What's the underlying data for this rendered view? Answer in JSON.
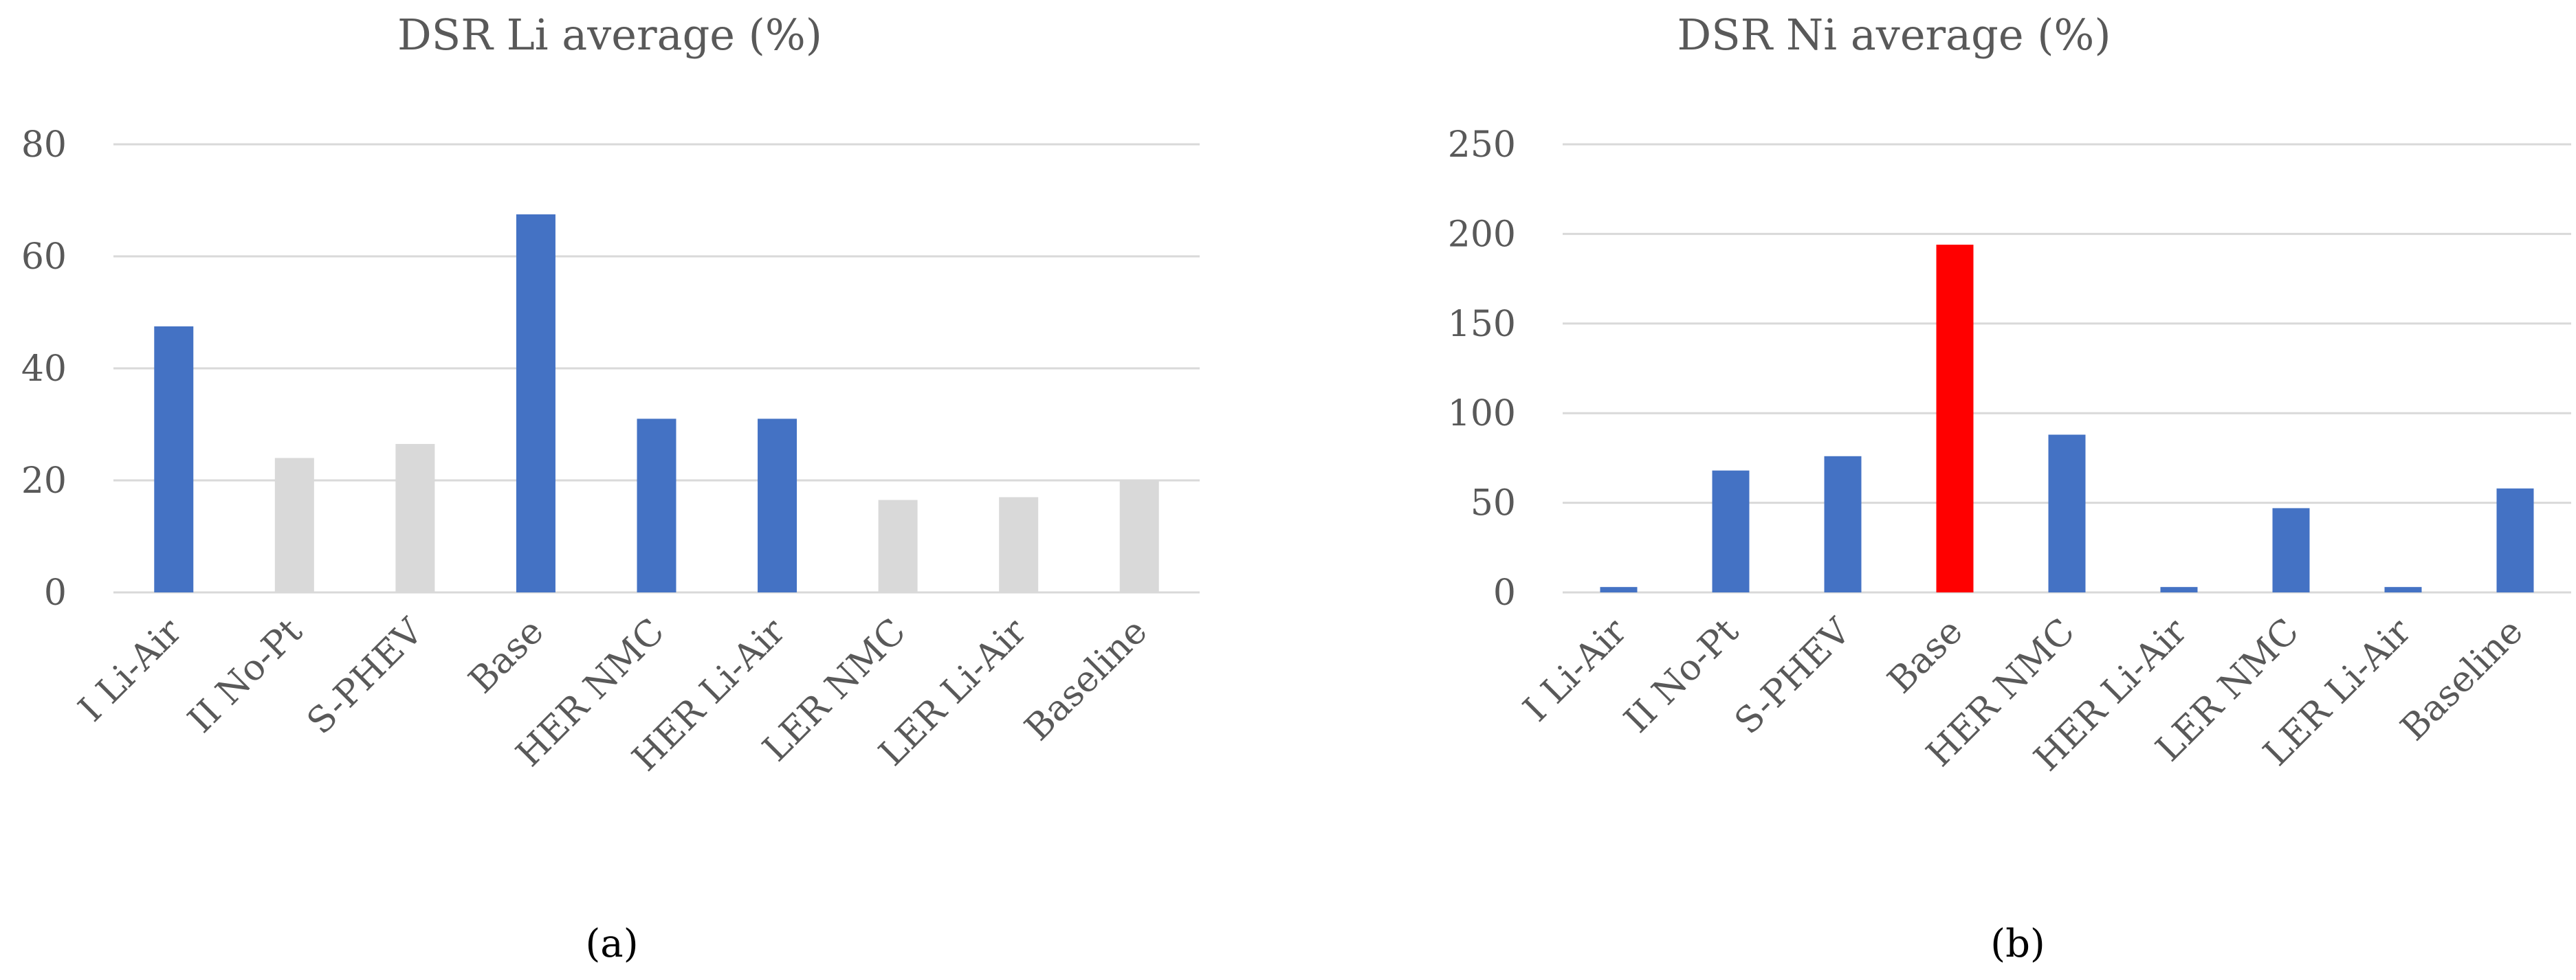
{
  "chart_data": [
    {
      "type": "bar",
      "title": "DSR Li average (%)",
      "panel_label": "(a)",
      "categories": [
        "I Li-Air",
        "II No-Pt",
        "S-PHEV",
        "Base",
        "HER NMC",
        "HER Li-Air",
        "LER NMC",
        "LER Li-Air",
        "Baseline"
      ],
      "values": [
        47.5,
        24,
        26.5,
        67.5,
        31,
        31,
        16.5,
        17,
        20
      ],
      "bar_colors": [
        "#4472c4",
        "#d9d9d9",
        "#d9d9d9",
        "#4472c4",
        "#4472c4",
        "#4472c4",
        "#d9d9d9",
        "#d9d9d9",
        "#d9d9d9"
      ],
      "ylim": [
        0,
        80
      ],
      "yticks": [
        "0",
        "20",
        "40",
        "60",
        "80"
      ],
      "xlabel": "",
      "ylabel": "",
      "grid": true
    },
    {
      "type": "bar",
      "title": "DSR Ni average (%)",
      "panel_label": "(b)",
      "categories": [
        "I Li-Air",
        "II No-Pt",
        "S-PHEV",
        "Base",
        "HER NMC",
        "HER Li-Air",
        "LER NMC",
        "LER Li-Air",
        "Baseline"
      ],
      "values": [
        3,
        68,
        76,
        194,
        88,
        3,
        47,
        3,
        58
      ],
      "bar_colors": [
        "#4472c4",
        "#4472c4",
        "#4472c4",
        "#ff0000",
        "#4472c4",
        "#4472c4",
        "#4472c4",
        "#4472c4",
        "#4472c4"
      ],
      "ylim": [
        0,
        250
      ],
      "yticks": [
        "0",
        "50",
        "100",
        "150",
        "200",
        "250"
      ],
      "xlabel": "",
      "ylabel": "",
      "grid": true
    }
  ]
}
